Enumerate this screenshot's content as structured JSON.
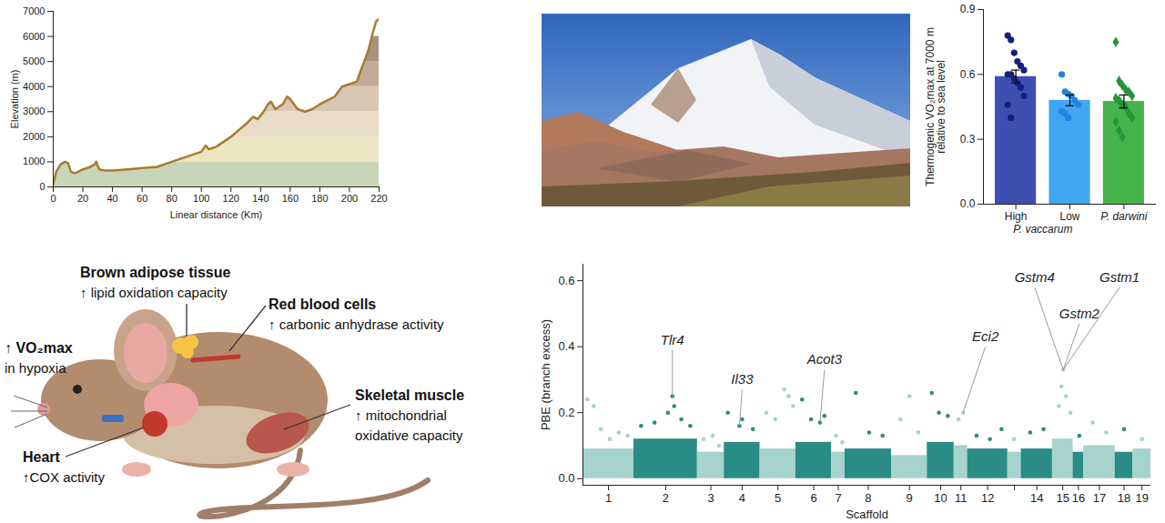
{
  "chart_data": [
    {
      "type": "line",
      "xlabel": "Linear distance (Km)",
      "ylabel": "Elevation (m)",
      "x": [
        0,
        2,
        5,
        8,
        10,
        12,
        15,
        20,
        25,
        28,
        29,
        31,
        35,
        40,
        50,
        60,
        70,
        80,
        90,
        100,
        103,
        105,
        110,
        120,
        130,
        135,
        138,
        142,
        145,
        147,
        150,
        155,
        158,
        160,
        165,
        170,
        175,
        180,
        190,
        195,
        200,
        205,
        208,
        210,
        213,
        216,
        218,
        220
      ],
      "values": [
        100,
        600,
        900,
        1000,
        950,
        600,
        550,
        700,
        800,
        900,
        1000,
        700,
        650,
        650,
        700,
        750,
        800,
        1000,
        1200,
        1400,
        1650,
        1500,
        1600,
        2000,
        2500,
        2800,
        2700,
        3000,
        3300,
        3400,
        3100,
        3300,
        3600,
        3500,
        3100,
        3000,
        3100,
        3300,
        3600,
        4000,
        4100,
        4200,
        4700,
        5000,
        5500,
        6200,
        6600,
        6700
      ],
      "color": "#a87b2f",
      "bands": [
        {
          "lo": 0,
          "hi": 1000,
          "color": "#c8d5b9"
        },
        {
          "lo": 1000,
          "hi": 2000,
          "color": "#ece6c3"
        },
        {
          "lo": 2000,
          "hi": 3000,
          "color": "#e8dcc6"
        },
        {
          "lo": 3000,
          "hi": 4000,
          "color": "#d8c7b4"
        },
        {
          "lo": 4000,
          "hi": 5000,
          "color": "#c2ab96"
        },
        {
          "lo": 5000,
          "hi": 6000,
          "color": "#a8917e"
        }
      ],
      "xlim": [
        0,
        220
      ],
      "xticks": [
        0,
        20,
        40,
        60,
        80,
        100,
        120,
        140,
        160,
        180,
        200,
        220
      ],
      "ylim": [
        0,
        7000
      ],
      "yticks": [
        0,
        1000,
        2000,
        3000,
        4000,
        5000,
        6000,
        7000
      ]
    },
    {
      "type": "bar",
      "ylabel": [
        "Thermogenic VO₂max at 7000 m",
        "relative to sea level"
      ],
      "bars": [
        {
          "category": "High",
          "value": 0.59,
          "error": 0.03,
          "color": "#3f4fb0",
          "point_color": "#16207a",
          "marker": "circle",
          "points": [
            0.78,
            0.76,
            0.7,
            0.66,
            0.64,
            0.62,
            0.6,
            0.6,
            0.58,
            0.56,
            0.54,
            0.5,
            0.46,
            0.4
          ]
        },
        {
          "category": "Low",
          "value": 0.48,
          "error": 0.025,
          "color": "#40a6f2",
          "point_color": "#1e86e0",
          "marker": "circle",
          "points": [
            0.6,
            0.52,
            0.51,
            0.5,
            0.48,
            0.46,
            0.43,
            0.42,
            0.4
          ]
        },
        {
          "category": "P. darwini",
          "value": 0.475,
          "error": 0.03,
          "color": "#45b24c",
          "point_color": "#23963a",
          "marker": "diamond",
          "points": [
            0.75,
            0.57,
            0.55,
            0.53,
            0.52,
            0.5,
            0.49,
            0.48,
            0.46,
            0.45,
            0.42,
            0.4,
            0.38,
            0.34,
            0.31
          ]
        }
      ],
      "groups": [
        {
          "label": "P. vaccarum",
          "categories": [
            "High",
            "Low"
          ]
        }
      ],
      "ylim": [
        0,
        0.9
      ],
      "yticks": [
        {
          "value": 0,
          "label": "0.0"
        },
        {
          "value": 0.3,
          "label": "0.3"
        },
        {
          "value": 0.6,
          "label": "0.6"
        },
        {
          "value": 0.9,
          "label": "0.9"
        }
      ]
    },
    {
      "type": "scatter",
      "xlabel": "Scaffold",
      "ylabel": "PBE (branch excess)",
      "categories": [
        "1",
        "2",
        "3",
        "4",
        "5",
        "6",
        "7",
        "8",
        "9",
        "10",
        "11",
        "12",
        null,
        "14",
        "15",
        "16",
        "17",
        "18",
        "19"
      ],
      "scaffolds": [
        {
          "start": 0,
          "end": 57,
          "color": "#a6d3cd",
          "base": 0.09,
          "points": [
            [
              5,
              0.24
            ],
            [
              12,
              0.22
            ],
            [
              20,
              0.15
            ],
            [
              30,
              0.12
            ],
            [
              40,
              0.14
            ],
            [
              50,
              0.13
            ]
          ]
        },
        {
          "start": 57,
          "end": 128,
          "color": "#2a8c84",
          "base": 0.12,
          "points": [
            [
              65,
              0.16
            ],
            [
              80,
              0.17
            ],
            [
              95,
              0.2
            ],
            [
              100,
              0.25
            ],
            [
              102,
              0.22
            ],
            [
              110,
              0.18
            ],
            [
              120,
              0.16
            ]
          ]
        },
        {
          "start": 128,
          "end": 158,
          "color": "#a6d3cd",
          "base": 0.08,
          "points": [
            [
              135,
              0.12
            ],
            [
              145,
              0.13
            ],
            [
              152,
              0.1
            ]
          ]
        },
        {
          "start": 158,
          "end": 198,
          "color": "#2a8c84",
          "base": 0.11,
          "points": [
            [
              162,
              0.2
            ],
            [
              175,
              0.16
            ],
            [
              178,
              0.18
            ],
            [
              190,
              0.15
            ]
          ]
        },
        {
          "start": 198,
          "end": 238,
          "color": "#a6d3cd",
          "base": 0.09,
          "points": [
            [
              205,
              0.2
            ],
            [
              215,
              0.18
            ],
            [
              225,
              0.27
            ],
            [
              230,
              0.25
            ],
            [
              235,
              0.22
            ]
          ]
        },
        {
          "start": 238,
          "end": 278,
          "color": "#2a8c84",
          "base": 0.11,
          "points": [
            [
              245,
              0.24
            ],
            [
              255,
              0.18
            ],
            [
              265,
              0.17
            ],
            [
              270,
              0.19
            ]
          ]
        },
        {
          "start": 278,
          "end": 293,
          "color": "#a6d3cd",
          "base": 0.08,
          "points": [
            [
              283,
              0.13
            ],
            [
              290,
              0.11
            ]
          ]
        },
        {
          "start": 293,
          "end": 345,
          "color": "#2a8c84",
          "base": 0.09,
          "points": [
            [
              305,
              0.26
            ],
            [
              320,
              0.14
            ],
            [
              335,
              0.13
            ]
          ]
        },
        {
          "start": 345,
          "end": 385,
          "color": "#a6d3cd",
          "base": 0.07,
          "points": [
            [
              355,
              0.18
            ],
            [
              365,
              0.25
            ],
            [
              375,
              0.14
            ]
          ]
        },
        {
          "start": 385,
          "end": 415,
          "color": "#2a8c84",
          "base": 0.11,
          "points": [
            [
              390,
              0.26
            ],
            [
              398,
              0.2
            ],
            [
              408,
              0.19
            ]
          ]
        },
        {
          "start": 415,
          "end": 430,
          "color": "#a6d3cd",
          "base": 0.1,
          "points": [
            [
              420,
              0.18
            ],
            [
              425,
              0.2
            ]
          ]
        },
        {
          "start": 430,
          "end": 475,
          "color": "#2a8c84",
          "base": 0.09,
          "points": [
            [
              440,
              0.13
            ],
            [
              455,
              0.12
            ],
            [
              468,
              0.15
            ]
          ]
        },
        {
          "start": 475,
          "end": 490,
          "color": "#a6d3cd",
          "base": 0.08,
          "points": [
            [
              482,
              0.12
            ]
          ]
        },
        {
          "start": 490,
          "end": 525,
          "color": "#2a8c84",
          "base": 0.09,
          "points": [
            [
              500,
              0.14
            ],
            [
              515,
              0.15
            ]
          ]
        },
        {
          "start": 525,
          "end": 548,
          "color": "#a6d3cd",
          "base": 0.12,
          "points": [
            [
              532,
              0.22
            ],
            [
              535,
              0.28
            ],
            [
              537,
              0.33
            ],
            [
              540,
              0.25
            ],
            [
              545,
              0.2
            ]
          ]
        },
        {
          "start": 548,
          "end": 560,
          "color": "#2a8c84",
          "base": 0.08,
          "points": [
            [
              555,
              0.13
            ]
          ]
        },
        {
          "start": 560,
          "end": 595,
          "color": "#a6d3cd",
          "base": 0.1,
          "points": [
            [
              570,
              0.17
            ],
            [
              585,
              0.14
            ]
          ]
        },
        {
          "start": 595,
          "end": 615,
          "color": "#2a8c84",
          "base": 0.08,
          "points": [
            [
              605,
              0.15
            ]
          ]
        },
        {
          "start": 615,
          "end": 635,
          "color": "#a6d3cd",
          "base": 0.09,
          "points": [
            [
              625,
              0.12
            ]
          ]
        }
      ],
      "annotations": [
        {
          "text": "Tlr4",
          "x": 100,
          "y": 0.25
        },
        {
          "text": "Il33",
          "x": 175,
          "y": 0.16
        },
        {
          "text": "Acot3",
          "x": 265,
          "y": 0.17
        },
        {
          "text": "Eci2",
          "x": 425,
          "y": 0.2
        },
        {
          "text": "Gstm4",
          "x": 537,
          "y": 0.33
        },
        {
          "text": "Gstm1",
          "x": 537,
          "y": 0.33
        },
        {
          "text": "Gstm2",
          "x": 537,
          "y": 0.33
        }
      ],
      "xlim": [
        0,
        635
      ],
      "ylim": [
        -0.02,
        0.65
      ],
      "yticks": [
        {
          "value": 0,
          "label": "0.0"
        },
        {
          "value": 0.2,
          "label": "0.2"
        },
        {
          "value": 0.4,
          "label": "0.4"
        },
        {
          "value": 0.6,
          "label": "0.6"
        }
      ]
    }
  ],
  "diagram": {
    "labels": [
      {
        "title": "Brown adipose tissue",
        "lines": [
          "↑ lipid oxidation capacity"
        ]
      },
      {
        "title": "↑ VO₂max",
        "lines": [
          "in hypoxia"
        ]
      },
      {
        "title": "Red blood cells",
        "lines": [
          "↑ carbonic anhydrase activity"
        ]
      },
      {
        "title": "Skeletal muscle",
        "lines": [
          "↑ mitochondrial",
          "oxidative capacity"
        ]
      },
      {
        "title": "Heart",
        "lines": [
          "↑COX activity"
        ]
      }
    ]
  }
}
